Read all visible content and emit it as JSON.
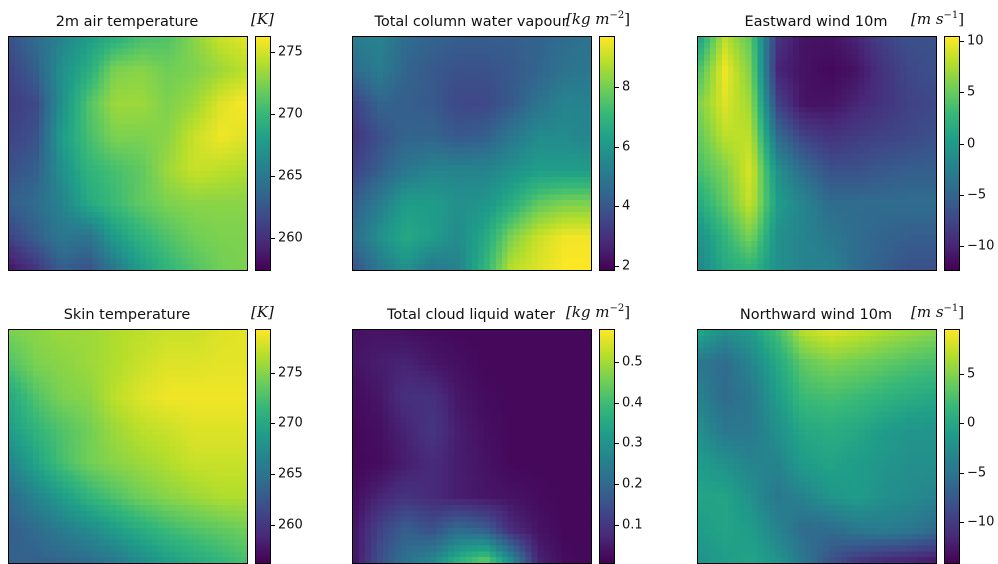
{
  "colors": {
    "viridis": [
      "#440154",
      "#482878",
      "#3e4989",
      "#31688e",
      "#26828e",
      "#1f9e89",
      "#35b779",
      "#6ece58",
      "#b5de2b",
      "#fde725"
    ]
  },
  "chart_data": [
    {
      "type": "heatmap",
      "title": "2m air temperature",
      "units": {
        "base": "[K]",
        "exp": ""
      },
      "colorbar": {
        "vmin": 257.5,
        "vmax": 276.3,
        "ticks": [
          260,
          265,
          270,
          275
        ]
      },
      "field": [
        [
          0.25,
          0.35,
          0.45,
          0.55,
          0.62,
          0.7,
          0.72,
          0.82,
          0.92,
          0.96
        ],
        [
          0.2,
          0.3,
          0.5,
          0.62,
          0.8,
          0.82,
          0.78,
          0.8,
          0.85,
          0.9
        ],
        [
          0.18,
          0.22,
          0.5,
          0.72,
          0.85,
          0.85,
          0.8,
          0.85,
          0.95,
          1.0
        ],
        [
          0.2,
          0.25,
          0.55,
          0.7,
          0.8,
          0.8,
          0.82,
          0.92,
          0.98,
          0.95
        ],
        [
          0.25,
          0.3,
          0.5,
          0.65,
          0.7,
          0.75,
          0.85,
          0.92,
          0.9,
          0.88
        ],
        [
          0.3,
          0.35,
          0.45,
          0.6,
          0.68,
          0.75,
          0.8,
          0.82,
          0.82,
          0.82
        ],
        [
          0.2,
          0.3,
          0.4,
          0.38,
          0.55,
          0.65,
          0.72,
          0.78,
          0.8,
          0.8
        ],
        [
          0.05,
          0.15,
          0.3,
          0.25,
          0.4,
          0.55,
          0.65,
          0.72,
          0.78,
          0.8
        ]
      ]
    },
    {
      "type": "heatmap",
      "title": "Total column water vapour",
      "units": {
        "base": "[kg m",
        "exp": "−2",
        "close": "]"
      },
      "colorbar": {
        "vmin": 1.9,
        "vmax": 9.7,
        "ticks": [
          2,
          4,
          6,
          8
        ]
      },
      "field": [
        [
          0.42,
          0.45,
          0.35,
          0.32,
          0.3,
          0.3,
          0.3,
          0.32,
          0.35,
          0.38
        ],
        [
          0.35,
          0.42,
          0.32,
          0.28,
          0.25,
          0.25,
          0.28,
          0.32,
          0.38,
          0.4
        ],
        [
          0.2,
          0.32,
          0.3,
          0.28,
          0.22,
          0.22,
          0.28,
          0.38,
          0.45,
          0.45
        ],
        [
          0.15,
          0.25,
          0.32,
          0.32,
          0.28,
          0.3,
          0.4,
          0.48,
          0.48,
          0.45
        ],
        [
          0.2,
          0.3,
          0.4,
          0.45,
          0.45,
          0.45,
          0.5,
          0.55,
          0.55,
          0.55
        ],
        [
          0.3,
          0.42,
          0.55,
          0.55,
          0.5,
          0.52,
          0.62,
          0.75,
          0.8,
          0.8
        ],
        [
          0.35,
          0.5,
          0.6,
          0.55,
          0.48,
          0.6,
          0.8,
          0.92,
          0.98,
          0.98
        ],
        [
          0.25,
          0.4,
          0.5,
          0.4,
          0.45,
          0.65,
          0.9,
          0.95,
          1.0,
          1.0
        ]
      ]
    },
    {
      "type": "heatmap",
      "title": "Eastward wind 10m",
      "units": {
        "base": "[m s",
        "exp": "−1",
        "close": "]"
      },
      "colorbar": {
        "vmin": -12.2,
        "vmax": 10.5,
        "ticks": [
          -10,
          -5,
          0,
          5,
          10
        ]
      },
      "field": [
        [
          0.55,
          0.9,
          0.75,
          0.15,
          0.05,
          0.05,
          0.1,
          0.2,
          0.25,
          0.25
        ],
        [
          0.7,
          0.98,
          0.8,
          0.1,
          0.05,
          0.02,
          0.05,
          0.15,
          0.22,
          0.25
        ],
        [
          0.8,
          0.95,
          0.85,
          0.2,
          0.05,
          0.05,
          0.1,
          0.15,
          0.2,
          0.22
        ],
        [
          0.75,
          0.9,
          0.9,
          0.35,
          0.2,
          0.15,
          0.18,
          0.2,
          0.22,
          0.25
        ],
        [
          0.7,
          0.8,
          0.95,
          0.5,
          0.35,
          0.25,
          0.25,
          0.28,
          0.3,
          0.3
        ],
        [
          0.6,
          0.75,
          0.92,
          0.55,
          0.45,
          0.35,
          0.35,
          0.35,
          0.35,
          0.35
        ],
        [
          0.5,
          0.65,
          0.8,
          0.5,
          0.45,
          0.4,
          0.35,
          0.32,
          0.3,
          0.3
        ],
        [
          0.45,
          0.6,
          0.65,
          0.5,
          0.45,
          0.45,
          0.35,
          0.3,
          0.25,
          0.25
        ]
      ]
    },
    {
      "type": "heatmap",
      "title": "Skin temperature",
      "units": {
        "base": "[K]",
        "exp": ""
      },
      "colorbar": {
        "vmin": 256.3,
        "vmax": 279.3,
        "ticks": [
          260,
          265,
          270,
          275
        ]
      },
      "field": [
        [
          0.8,
          0.82,
          0.85,
          0.85,
          0.88,
          0.9,
          0.92,
          0.92,
          0.95,
          0.96
        ],
        [
          0.72,
          0.8,
          0.82,
          0.85,
          0.88,
          0.92,
          0.95,
          0.95,
          0.96,
          0.96
        ],
        [
          0.6,
          0.72,
          0.8,
          0.82,
          0.9,
          0.95,
          0.98,
          0.98,
          0.98,
          0.98
        ],
        [
          0.55,
          0.65,
          0.72,
          0.78,
          0.85,
          0.9,
          0.92,
          0.95,
          0.95,
          0.95
        ],
        [
          0.45,
          0.58,
          0.7,
          0.78,
          0.82,
          0.85,
          0.88,
          0.92,
          0.92,
          0.92
        ],
        [
          0.35,
          0.45,
          0.55,
          0.65,
          0.72,
          0.78,
          0.82,
          0.85,
          0.88,
          0.88
        ],
        [
          0.3,
          0.35,
          0.42,
          0.48,
          0.55,
          0.62,
          0.68,
          0.72,
          0.75,
          0.78
        ],
        [
          0.32,
          0.3,
          0.32,
          0.35,
          0.4,
          0.48,
          0.55,
          0.6,
          0.65,
          0.7
        ]
      ]
    },
    {
      "type": "heatmap",
      "title": "Total cloud liquid water",
      "units": {
        "base": "[kg m",
        "exp": "−2",
        "close": "]"
      },
      "colorbar": {
        "vmin": 0.01,
        "vmax": 0.58,
        "ticks": [
          0.1,
          0.2,
          0.3,
          0.4,
          0.5
        ]
      },
      "field": [
        [
          0.05,
          0.05,
          0.04,
          0.03,
          0.02,
          0.02,
          0.02,
          0.02,
          0.02,
          0.02
        ],
        [
          0.05,
          0.08,
          0.1,
          0.06,
          0.04,
          0.02,
          0.02,
          0.02,
          0.02,
          0.02
        ],
        [
          0.03,
          0.06,
          0.14,
          0.14,
          0.06,
          0.03,
          0.02,
          0.02,
          0.02,
          0.02
        ],
        [
          0.02,
          0.04,
          0.1,
          0.16,
          0.08,
          0.04,
          0.02,
          0.02,
          0.02,
          0.02
        ],
        [
          0.02,
          0.03,
          0.08,
          0.12,
          0.08,
          0.05,
          0.02,
          0.02,
          0.02,
          0.02
        ],
        [
          0.03,
          0.1,
          0.15,
          0.12,
          0.08,
          0.06,
          0.05,
          0.03,
          0.02,
          0.02
        ],
        [
          0.05,
          0.2,
          0.3,
          0.25,
          0.35,
          0.3,
          0.12,
          0.05,
          0.02,
          0.02
        ],
        [
          0.04,
          0.25,
          0.38,
          0.48,
          0.65,
          0.78,
          0.5,
          0.1,
          0.03,
          0.02
        ]
      ]
    },
    {
      "type": "heatmap",
      "title": "Northward wind 10m",
      "units": {
        "base": "[m s",
        "exp": "−1",
        "close": "]"
      },
      "colorbar": {
        "vmin": -14.0,
        "vmax": 9.5,
        "ticks": [
          -10,
          -5,
          0,
          5
        ]
      },
      "field": [
        [
          0.6,
          0.5,
          0.55,
          0.7,
          0.9,
          0.95,
          0.92,
          0.88,
          0.85,
          0.82
        ],
        [
          0.4,
          0.35,
          0.45,
          0.6,
          0.75,
          0.8,
          0.78,
          0.75,
          0.72,
          0.7
        ],
        [
          0.45,
          0.35,
          0.4,
          0.55,
          0.68,
          0.7,
          0.68,
          0.65,
          0.62,
          0.6
        ],
        [
          0.5,
          0.4,
          0.4,
          0.5,
          0.6,
          0.62,
          0.6,
          0.55,
          0.52,
          0.52
        ],
        [
          0.55,
          0.5,
          0.45,
          0.45,
          0.55,
          0.58,
          0.55,
          0.52,
          0.5,
          0.5
        ],
        [
          0.58,
          0.58,
          0.5,
          0.4,
          0.45,
          0.52,
          0.55,
          0.5,
          0.48,
          0.45
        ],
        [
          0.55,
          0.58,
          0.55,
          0.45,
          0.35,
          0.35,
          0.4,
          0.42,
          0.4,
          0.35
        ],
        [
          0.5,
          0.55,
          0.58,
          0.52,
          0.4,
          0.25,
          0.15,
          0.1,
          0.08,
          0.05
        ]
      ]
    }
  ]
}
